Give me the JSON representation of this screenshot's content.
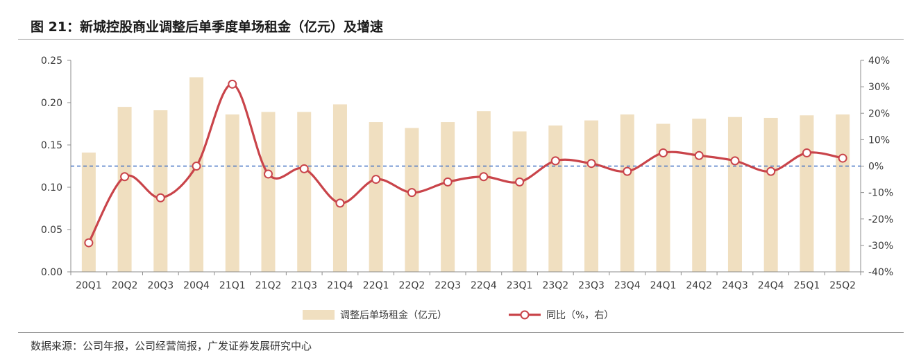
{
  "title": "图 21：新城控股商业调整后单季度单场租金（亿元）及增速",
  "source": "数据来源：公司年报，公司经营简报，广发证券发展研究中心",
  "colors": {
    "bar": "#f0dfc0",
    "line": "#c9444a",
    "marker_fill": "#ffffff",
    "reference": "#4472c4",
    "axis": "#8c8c8c"
  },
  "chart_data": {
    "type": "bar+line",
    "categories": [
      "20Q1",
      "20Q2",
      "20Q3",
      "20Q4",
      "21Q1",
      "21Q2",
      "21Q3",
      "21Q4",
      "22Q1",
      "22Q2",
      "22Q3",
      "22Q4",
      "23Q1",
      "23Q2",
      "23Q3",
      "23Q4",
      "24Q1",
      "24Q2",
      "24Q3",
      "24Q4",
      "25Q1",
      "25Q2"
    ],
    "series": [
      {
        "name": "调整后单场租金（亿元）",
        "axis": "left",
        "kind": "bar",
        "values": [
          0.141,
          0.195,
          0.191,
          0.23,
          0.186,
          0.189,
          0.189,
          0.198,
          0.177,
          0.17,
          0.177,
          0.19,
          0.166,
          0.173,
          0.179,
          0.186,
          0.175,
          0.181,
          0.183,
          0.182,
          0.185,
          0.186
        ]
      },
      {
        "name": "同比（%，右）",
        "axis": "right",
        "kind": "line",
        "values": [
          -29,
          -4,
          -12,
          0,
          31,
          -3,
          -1,
          -14,
          -5,
          -10,
          -6,
          -4,
          -6,
          2,
          1,
          -2,
          5,
          4,
          2,
          -2,
          5,
          3
        ]
      }
    ],
    "left_axis": {
      "min": 0,
      "max": 0.25,
      "ticks": [
        "0.00",
        "0.05",
        "0.10",
        "0.15",
        "0.20",
        "0.25"
      ]
    },
    "right_axis": {
      "min": -40,
      "max": 40,
      "ticks": [
        "-40%",
        "-30%",
        "-20%",
        "-10%",
        "0%",
        "10%",
        "20%",
        "30%",
        "40%"
      ]
    },
    "reference_line": {
      "axis": "right",
      "value": 0,
      "style": "dashed"
    },
    "legend": {
      "position": "bottom",
      "bar_label": "调整后单场租金（亿元）",
      "line_label": "同比（%，右）"
    }
  }
}
